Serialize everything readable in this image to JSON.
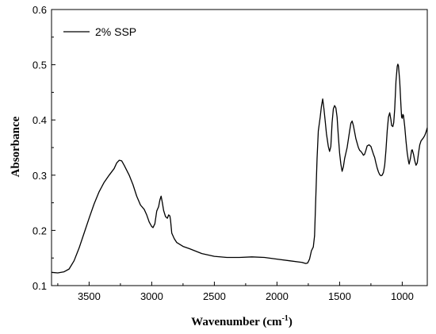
{
  "chart_data": {
    "type": "line",
    "xlabel_main": "Wavenumber (cm",
    "xlabel_sup": "-1",
    "xlabel_close": ")",
    "ylabel": "Absorbance",
    "xlim": [
      3800,
      800
    ],
    "x_reversed": true,
    "ylim": [
      0.1,
      0.6
    ],
    "x_ticks": [
      3500,
      3000,
      2500,
      2000,
      1500,
      1000
    ],
    "y_ticks": [
      0.1,
      0.2,
      0.3,
      0.4,
      0.5,
      0.6
    ],
    "y_tick_labels": [
      "0.1",
      "0.2",
      "0.3",
      "0.4",
      "0.5",
      "0.6"
    ],
    "grid": false,
    "legend_position": "top-left",
    "series": [
      {
        "name": "2% SSP",
        "color": "#000000",
        "points": [
          [
            3800,
            0.124
          ],
          [
            3750,
            0.123
          ],
          [
            3700,
            0.125
          ],
          [
            3660,
            0.13
          ],
          [
            3620,
            0.145
          ],
          [
            3580,
            0.168
          ],
          [
            3540,
            0.195
          ],
          [
            3500,
            0.222
          ],
          [
            3460,
            0.248
          ],
          [
            3420,
            0.27
          ],
          [
            3380,
            0.287
          ],
          [
            3340,
            0.3
          ],
          [
            3300,
            0.312
          ],
          [
            3280,
            0.322
          ],
          [
            3260,
            0.327
          ],
          [
            3240,
            0.326
          ],
          [
            3220,
            0.318
          ],
          [
            3180,
            0.3
          ],
          [
            3150,
            0.283
          ],
          [
            3120,
            0.262
          ],
          [
            3090,
            0.246
          ],
          [
            3060,
            0.238
          ],
          [
            3040,
            0.228
          ],
          [
            3020,
            0.215
          ],
          [
            3000,
            0.207
          ],
          [
            2990,
            0.205
          ],
          [
            2975,
            0.212
          ],
          [
            2960,
            0.235
          ],
          [
            2945,
            0.243
          ],
          [
            2935,
            0.255
          ],
          [
            2925,
            0.262
          ],
          [
            2915,
            0.25
          ],
          [
            2905,
            0.236
          ],
          [
            2890,
            0.225
          ],
          [
            2875,
            0.222
          ],
          [
            2865,
            0.228
          ],
          [
            2855,
            0.226
          ],
          [
            2850,
            0.219
          ],
          [
            2840,
            0.195
          ],
          [
            2820,
            0.185
          ],
          [
            2800,
            0.178
          ],
          [
            2750,
            0.171
          ],
          [
            2700,
            0.167
          ],
          [
            2600,
            0.158
          ],
          [
            2500,
            0.153
          ],
          [
            2400,
            0.151
          ],
          [
            2300,
            0.151
          ],
          [
            2200,
            0.152
          ],
          [
            2100,
            0.151
          ],
          [
            2000,
            0.148
          ],
          [
            1900,
            0.145
          ],
          [
            1800,
            0.142
          ],
          [
            1770,
            0.14
          ],
          [
            1755,
            0.141
          ],
          [
            1740,
            0.148
          ],
          [
            1725,
            0.163
          ],
          [
            1710,
            0.17
          ],
          [
            1700,
            0.19
          ],
          [
            1690,
            0.26
          ],
          [
            1680,
            0.33
          ],
          [
            1670,
            0.38
          ],
          [
            1655,
            0.405
          ],
          [
            1645,
            0.425
          ],
          [
            1635,
            0.438
          ],
          [
            1625,
            0.42
          ],
          [
            1615,
            0.398
          ],
          [
            1605,
            0.375
          ],
          [
            1590,
            0.352
          ],
          [
            1580,
            0.343
          ],
          [
            1570,
            0.352
          ],
          [
            1560,
            0.395
          ],
          [
            1550,
            0.42
          ],
          [
            1540,
            0.426
          ],
          [
            1530,
            0.422
          ],
          [
            1520,
            0.405
          ],
          [
            1510,
            0.37
          ],
          [
            1500,
            0.34
          ],
          [
            1490,
            0.32
          ],
          [
            1480,
            0.307
          ],
          [
            1470,
            0.315
          ],
          [
            1460,
            0.33
          ],
          [
            1450,
            0.34
          ],
          [
            1440,
            0.35
          ],
          [
            1430,
            0.365
          ],
          [
            1420,
            0.38
          ],
          [
            1410,
            0.394
          ],
          [
            1400,
            0.398
          ],
          [
            1390,
            0.39
          ],
          [
            1380,
            0.378
          ],
          [
            1370,
            0.366
          ],
          [
            1360,
            0.358
          ],
          [
            1350,
            0.35
          ],
          [
            1340,
            0.345
          ],
          [
            1330,
            0.343
          ],
          [
            1320,
            0.34
          ],
          [
            1310,
            0.336
          ],
          [
            1300,
            0.338
          ],
          [
            1290,
            0.345
          ],
          [
            1280,
            0.353
          ],
          [
            1265,
            0.355
          ],
          [
            1250,
            0.352
          ],
          [
            1240,
            0.345
          ],
          [
            1230,
            0.338
          ],
          [
            1220,
            0.332
          ],
          [
            1210,
            0.322
          ],
          [
            1200,
            0.313
          ],
          [
            1190,
            0.306
          ],
          [
            1180,
            0.301
          ],
          [
            1170,
            0.299
          ],
          [
            1160,
            0.3
          ],
          [
            1150,
            0.305
          ],
          [
            1140,
            0.318
          ],
          [
            1130,
            0.345
          ],
          [
            1120,
            0.38
          ],
          [
            1110,
            0.405
          ],
          [
            1100,
            0.413
          ],
          [
            1090,
            0.4
          ],
          [
            1085,
            0.39
          ],
          [
            1075,
            0.388
          ],
          [
            1068,
            0.395
          ],
          [
            1060,
            0.42
          ],
          [
            1050,
            0.47
          ],
          [
            1040,
            0.497
          ],
          [
            1035,
            0.501
          ],
          [
            1030,
            0.498
          ],
          [
            1020,
            0.47
          ],
          [
            1010,
            0.425
          ],
          [
            1005,
            0.405
          ],
          [
            1000,
            0.403
          ],
          [
            995,
            0.41
          ],
          [
            990,
            0.408
          ],
          [
            980,
            0.388
          ],
          [
            970,
            0.362
          ],
          [
            960,
            0.34
          ],
          [
            950,
            0.325
          ],
          [
            945,
            0.32
          ],
          [
            935,
            0.33
          ],
          [
            925,
            0.345
          ],
          [
            920,
            0.346
          ],
          [
            910,
            0.338
          ],
          [
            900,
            0.326
          ],
          [
            890,
            0.318
          ],
          [
            880,
            0.322
          ],
          [
            870,
            0.34
          ],
          [
            860,
            0.355
          ],
          [
            850,
            0.362
          ],
          [
            840,
            0.365
          ],
          [
            830,
            0.368
          ],
          [
            820,
            0.372
          ],
          [
            810,
            0.378
          ],
          [
            800,
            0.386
          ]
        ]
      }
    ]
  }
}
